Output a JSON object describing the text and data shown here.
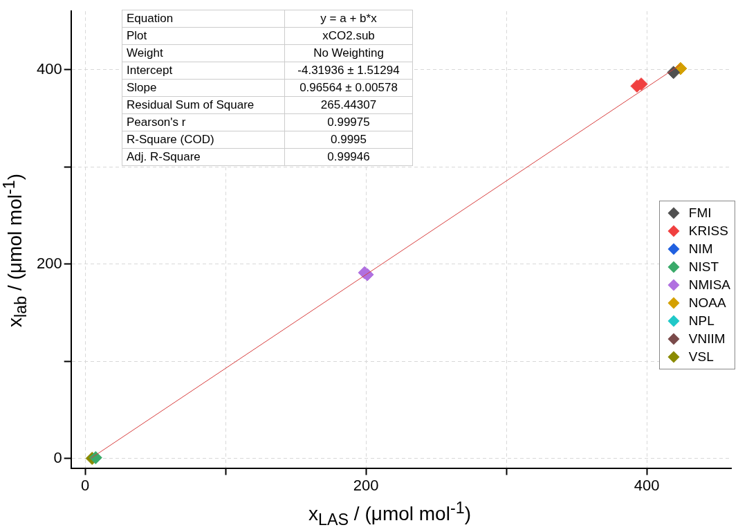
{
  "chart_data": {
    "type": "scatter",
    "xlabel": "x$_{LAS}$ / (μmol mol$^{-1}$)",
    "ylabel": "x$_{lab}$ / (μmol mol$^{-1}$)",
    "xlim": [
      -10,
      460
    ],
    "ylim": [
      -10,
      460
    ],
    "xticks": [
      0,
      {
        "value": 100,
        "label": null
      },
      200,
      {
        "value": 300,
        "label": null
      },
      400
    ],
    "yticks": [
      0,
      {
        "value": 100,
        "label": null
      },
      200,
      {
        "value": 300,
        "label": null
      },
      400
    ],
    "grid": true,
    "legend": "right",
    "marker": "diamond",
    "annotations": [
      "Equation",
      "y = a + b*x",
      "Plot",
      "xCO2.sub",
      "Weight",
      "No Weighting",
      "Intercept",
      "-4.31936 ± 1.51294",
      "Slope",
      "0.96564 ± 0.00578",
      "Residual Sum of Square",
      "265.44307",
      "Pearson's r",
      "0.99975",
      "R-Square (COD)",
      "0.9995",
      "Adj. R-Square",
      "0.99946"
    ],
    "series": [
      {
        "type": "line",
        "color": "#d84040",
        "x": [
          4,
          424
        ],
        "values": [
          0,
          405
        ],
        "marker": "none"
      },
      {
        "name": "FMI",
        "color": "#505050",
        "x": [
          419
        ],
        "values": [
          397
        ]
      },
      {
        "name": "KRISS",
        "color": "#f04040",
        "x": [
          393,
          396
        ],
        "values": [
          383,
          385
        ]
      },
      {
        "name": "NIM",
        "color": "#2060e0"
      },
      {
        "name": "NIST",
        "color": "#3aaa6a",
        "x": [
          7.5
        ],
        "values": [
          0.7
        ]
      },
      {
        "name": "NMISA",
        "color": "#b070e0",
        "x": [
          199,
          201
        ],
        "values": [
          191,
          189
        ]
      },
      {
        "name": "NOAA",
        "color": "#d4a000",
        "x": [
          424
        ],
        "values": [
          401
        ]
      },
      {
        "name": "NPL",
        "color": "#20c8c8"
      },
      {
        "name": "VNIIM",
        "color": "#7a4a4a"
      },
      {
        "name": "VSL",
        "color": "#8a8a00",
        "x": [
          5
        ],
        "values": [
          0
        ]
      }
    ]
  }
}
